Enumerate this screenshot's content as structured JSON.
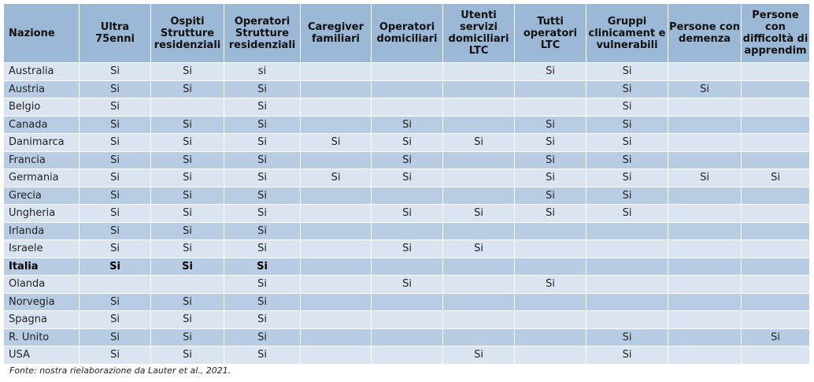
{
  "table": {
    "headers": [
      "Nazione",
      "Ultra 75enni",
      "Ospiti Strutture residenziali",
      "Operatori Strutture residenziali",
      "Caregiver familiari",
      "Operatori domiciliari",
      "Utenti servizi domiciliari LTC",
      "Tutti operatori LTC",
      "Gruppi clinicament e vulnerabili",
      "Persone con demenza",
      "Persone con difficoltà di apprendim"
    ],
    "rows": [
      {
        "cells": [
          "Australia",
          "Si",
          "Si",
          "si",
          "",
          "",
          "",
          "Si",
          "Si",
          "",
          ""
        ]
      },
      {
        "cells": [
          "Austria",
          "Si",
          "Si",
          "Si",
          "",
          "",
          "",
          "",
          "Si",
          "Si",
          ""
        ]
      },
      {
        "cells": [
          "Belgio",
          "Si",
          "",
          "Si",
          "",
          "",
          "",
          "",
          "Si",
          "",
          ""
        ]
      },
      {
        "cells": [
          "Canada",
          "Si",
          "Si",
          "Si",
          "",
          "Si",
          "",
          "Si",
          "Si",
          "",
          ""
        ]
      },
      {
        "cells": [
          "Danimarca",
          "Si",
          "Si",
          "Si",
          "Si",
          "Si",
          "Si",
          "Si",
          "Si",
          "",
          ""
        ]
      },
      {
        "cells": [
          "Francia",
          "Si",
          "Si",
          "Si",
          "",
          "Si",
          "",
          "Si",
          "Si",
          "",
          ""
        ]
      },
      {
        "cells": [
          "Germania",
          "Si",
          "Si",
          "Si",
          "Si",
          "Si",
          "",
          "Si",
          "Si",
          "Si",
          "Si"
        ]
      },
      {
        "cells": [
          "Grecia",
          "Si",
          "Si",
          "Si",
          "",
          "",
          "",
          "Si",
          "Si",
          "",
          ""
        ]
      },
      {
        "cells": [
          "Ungheria",
          "Si",
          "Si",
          "Si",
          "",
          "Si",
          "Si",
          "Si",
          "Si",
          "",
          ""
        ]
      },
      {
        "cells": [
          "Irlanda",
          "Si",
          "Si",
          "Si",
          "",
          "",
          "",
          "",
          "",
          "",
          ""
        ]
      },
      {
        "cells": [
          "Israele",
          "Si",
          "Si",
          "Si",
          "",
          "Si",
          "Si",
          "",
          "",
          "",
          ""
        ]
      },
      {
        "cells": [
          "Italia",
          "Si",
          "Si",
          "Si",
          "",
          "",
          "",
          "",
          "",
          "",
          ""
        ],
        "bold": true
      },
      {
        "cells": [
          "Olanda",
          "",
          "",
          "Si",
          "",
          "Si",
          "",
          "Si",
          "",
          "",
          ""
        ]
      },
      {
        "cells": [
          "Norvegia",
          "Si",
          "Si",
          "Si",
          "",
          "",
          "",
          "",
          "",
          "",
          ""
        ]
      },
      {
        "cells": [
          "Spagna",
          "Si",
          "Si",
          "Si",
          "",
          "",
          "",
          "",
          "",
          "",
          ""
        ]
      },
      {
        "cells": [
          "R. Unito",
          "Si",
          "Si",
          "Si",
          "",
          "",
          "",
          "",
          "Si",
          "",
          "Si"
        ]
      },
      {
        "cells": [
          "USA",
          "Si",
          "Si",
          "Si",
          "",
          "",
          "Si",
          "",
          "Si",
          "",
          ""
        ]
      }
    ]
  },
  "source_note": "Fonte: nostra rielaborazione da Lauter et al., 2021."
}
